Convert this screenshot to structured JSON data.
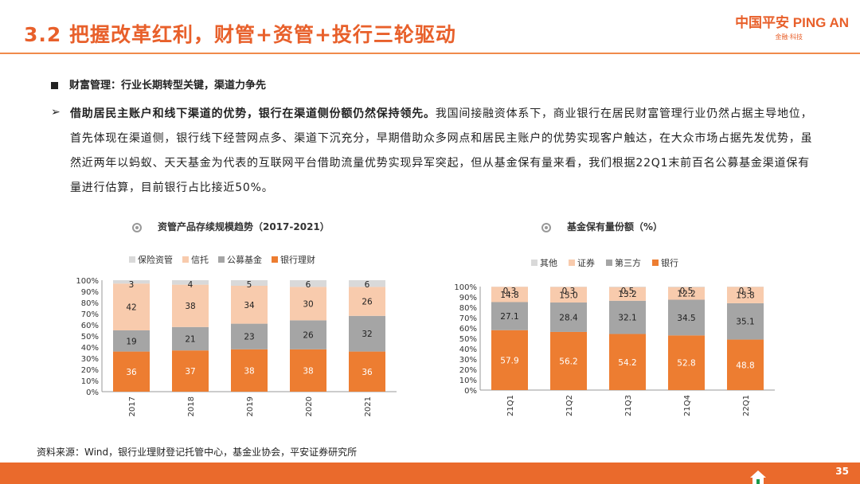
{
  "header": {
    "title": "3.2 把握改革红利，财管+资管+投行三轮驱动",
    "logo_main": "中国平安 PING AN",
    "logo_sub": "金融·科技"
  },
  "section_heading": "财富管理：行业长期转型关键，渠道力争先",
  "paragraph": {
    "lead": "借助居民主账户和线下渠道的优势，银行在渠道侧份额仍然保持领先。",
    "body": "我国间接融资体系下，商业银行在居民财富管理行业仍然占据主导地位，首先体现在渠道侧，银行线下经营网点多、渠道下沉充分，早期借助众多网点和居民主账户的优势实现客户触达，在大众市场占据先发优势，虽然近两年以蚂蚁、天天基金为代表的互联网平台借助流量优势实现异军突起，但从基金保有量来看，我们根据22Q1末前百名公募基金渠道保有量进行估算，目前银行占比接近50%。"
  },
  "source": "资料来源：Wind，银行业理财登记托管中心，基金业协会，平安证券研究所",
  "page_number": "35",
  "chart_data": [
    {
      "type": "bar",
      "stacked": true,
      "title": "资管产品存续规模趋势（2017-2021）",
      "categories": [
        "2017",
        "2018",
        "2019",
        "2020",
        "2021"
      ],
      "series": [
        {
          "name": "银行理财",
          "color": "#ed7d31",
          "values": [
            36,
            37,
            38,
            38,
            36
          ]
        },
        {
          "name": "公募基金",
          "color": "#a5a5a5",
          "values": [
            19,
            21,
            23,
            26,
            32
          ]
        },
        {
          "name": "信托",
          "color": "#f8cbad",
          "values": [
            42,
            38,
            34,
            30,
            26
          ]
        },
        {
          "name": "保险资管",
          "color": "#d9d9d9",
          "values": [
            3,
            4,
            5,
            6,
            6
          ]
        }
      ],
      "legend_order": [
        "保险资管",
        "信托",
        "公募基金",
        "银行理财"
      ],
      "yticks": [
        "0%",
        "10%",
        "20%",
        "30%",
        "40%",
        "50%",
        "60%",
        "70%",
        "80%",
        "90%",
        "100%"
      ],
      "ylim": [
        0,
        100
      ],
      "legend_position": "top"
    },
    {
      "type": "bar",
      "stacked": true,
      "title": "基金保有量份额（%）",
      "categories": [
        "21Q1",
        "21Q2",
        "21Q3",
        "21Q4",
        "22Q1"
      ],
      "series": [
        {
          "name": "银行",
          "color": "#ed7d31",
          "values": [
            57.9,
            56.2,
            54.2,
            52.8,
            48.8
          ]
        },
        {
          "name": "第三方",
          "color": "#a5a5a5",
          "values": [
            27.1,
            28.4,
            32.1,
            34.5,
            35.1
          ]
        },
        {
          "name": "证券",
          "color": "#f8cbad",
          "values": [
            14.8,
            15.0,
            13.2,
            12.2,
            15.8
          ]
        },
        {
          "name": "其他",
          "color": "#d9d9d9",
          "values": [
            0.3,
            0.3,
            0.5,
            0.5,
            0.3
          ]
        }
      ],
      "value_labels": [
        [
          "57.9",
          "56.2",
          "54.2",
          "52.8",
          "48.8"
        ],
        [
          "27.1",
          "28.4",
          "32.1",
          "34.5",
          "35.1"
        ],
        [
          "14.8",
          "15.0",
          "13.2",
          "12.2",
          "15.8"
        ],
        [
          "0.3",
          "0.3",
          "0.5",
          "0.5",
          "0.3"
        ]
      ],
      "legend_order": [
        "其他",
        "证券",
        "第三方",
        "银行"
      ],
      "yticks": [
        "0%",
        "10%",
        "20%",
        "30%",
        "40%",
        "50%",
        "60%",
        "70%",
        "80%",
        "90%",
        "100%"
      ],
      "ylim": [
        0,
        100
      ],
      "legend_position": "top"
    }
  ]
}
